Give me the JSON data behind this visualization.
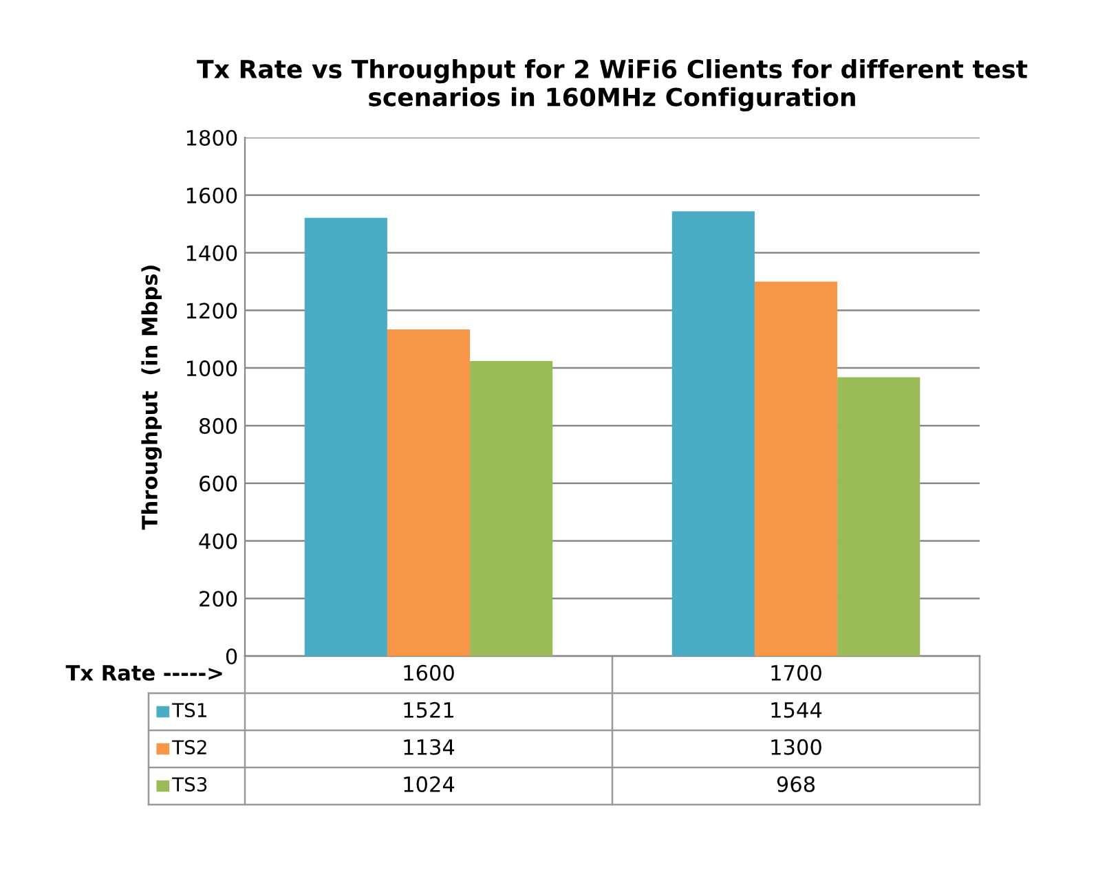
{
  "chart_data": {
    "type": "bar",
    "title": "Tx Rate vs Throughput for 2 WiFi6 Clients for different test scenarios in 160MHz Configuration",
    "xlabel": "Tx Rate ----->",
    "ylabel": "Throughput  (in Mbps)",
    "categories": [
      "1600",
      "1700"
    ],
    "series": [
      {
        "name": "TS1",
        "color": "#4bacc6",
        "values": [
          1521,
          1544
        ]
      },
      {
        "name": "TS2",
        "color": "#f79646",
        "values": [
          1134,
          1300
        ]
      },
      {
        "name": "TS3",
        "color": "#9bbb59",
        "values": [
          1024,
          968
        ]
      }
    ],
    "ylim": [
      0,
      1800
    ],
    "yticks": [
      0,
      200,
      400,
      600,
      800,
      1000,
      1200,
      1400,
      1600,
      1800
    ],
    "grid": "y",
    "data_labels": true,
    "legend": "bottom left"
  }
}
